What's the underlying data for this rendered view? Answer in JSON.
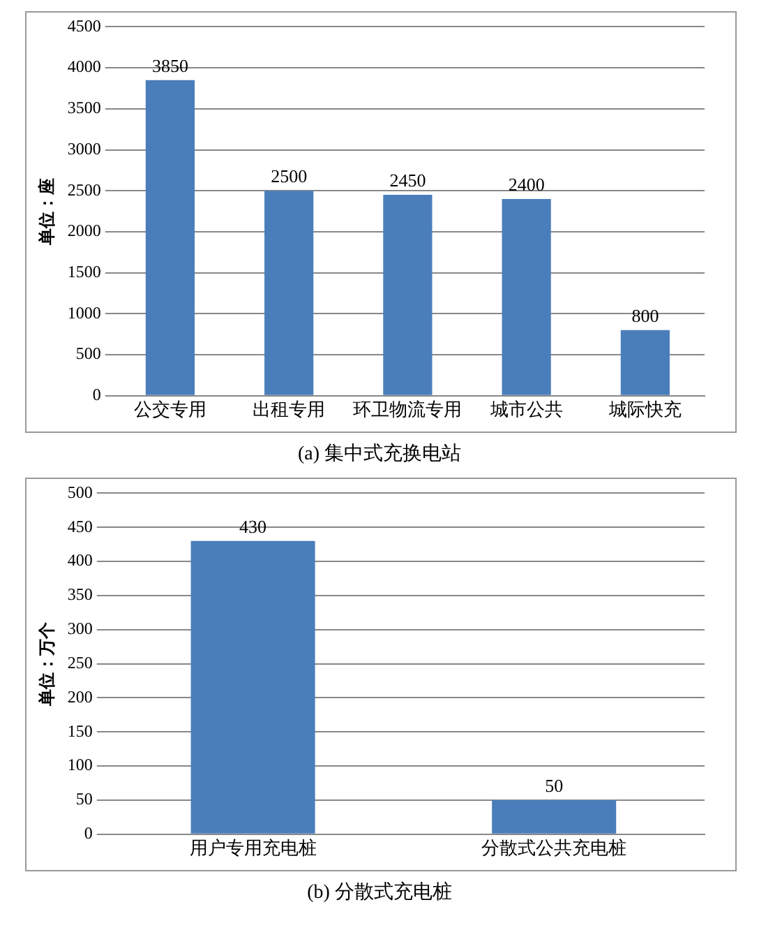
{
  "chart_data": [
    {
      "type": "bar",
      "title": "(a) 集中式充换电站",
      "ylabel": "单位：座",
      "categories": [
        "公交专用",
        "出租专用",
        "环卫物流专用",
        "城市公共",
        "城际快充"
      ],
      "values": [
        3850,
        2500,
        2450,
        2400,
        800
      ],
      "color": "#4a7ebb",
      "ylim": [
        0,
        4500
      ],
      "yticks": [
        0,
        500,
        1000,
        1500,
        2000,
        2500,
        3000,
        3500,
        4000,
        4500
      ],
      "grid": "y",
      "data_labels": true
    },
    {
      "type": "bar",
      "title": "(b) 分散式充电桩",
      "ylabel": "单位：万个",
      "categories": [
        "用户专用充电桩",
        "分散式公共充电桩"
      ],
      "values": [
        430,
        50
      ],
      "color": "#4a7ebb",
      "ylim": [
        0,
        500
      ],
      "yticks": [
        0,
        50,
        100,
        150,
        200,
        250,
        300,
        350,
        400,
        450,
        500
      ],
      "grid": "y",
      "data_labels": true
    }
  ]
}
